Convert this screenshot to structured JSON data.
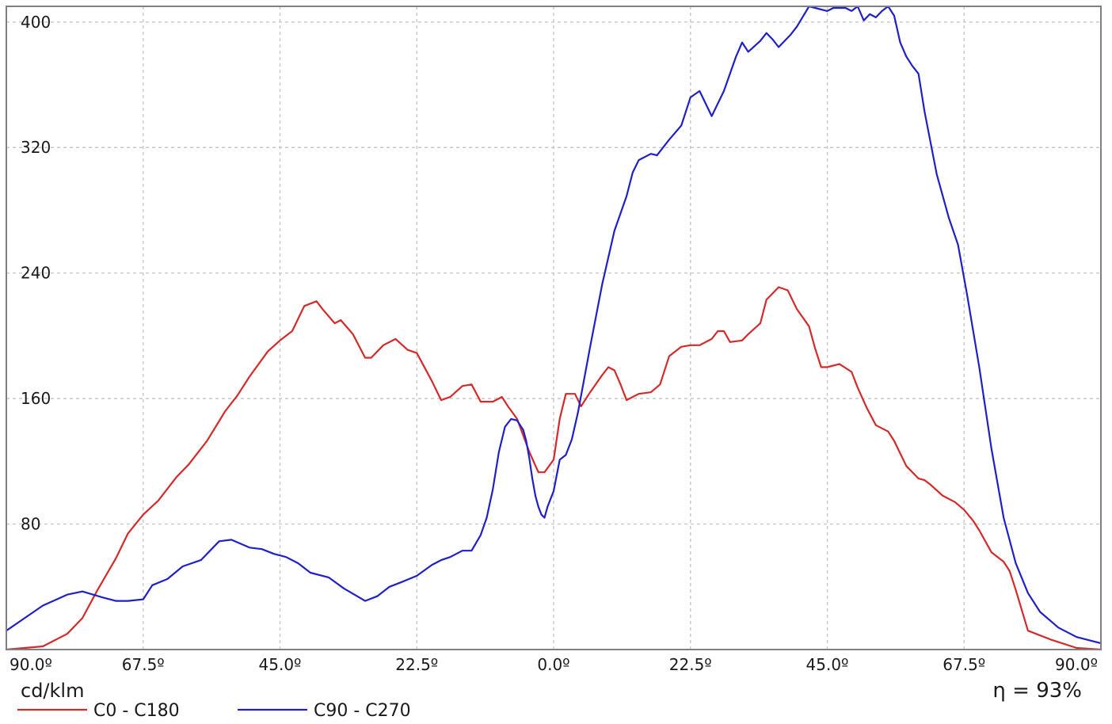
{
  "chart_data": {
    "type": "line",
    "xlabel": "",
    "ylabel": "cd/klm",
    "unit_label": "cd/klm",
    "efficiency_label": "η = 93%",
    "ylim": [
      0,
      410
    ],
    "xlim": [
      -90,
      90
    ],
    "y_ticks": [
      80,
      160,
      240,
      320,
      400
    ],
    "y_tick_labels": [
      "80",
      "160",
      "240",
      "320",
      "400"
    ],
    "x_ticks": [
      -90,
      -67.5,
      -45,
      -22.5,
      0,
      22.5,
      45,
      67.5,
      90
    ],
    "x_tick_labels": [
      "90.0º",
      "67.5º",
      "45.0º",
      "22.5º",
      "0.0º",
      "22.5º",
      "45.0º",
      "67.5º",
      "90.0º"
    ],
    "grid": true,
    "legend_position": "bottom-left",
    "colors": {
      "C0 - C180": "#d42a2a",
      "C90 - C270": "#2020c8",
      "grid": "#c8c8c8",
      "frame": "#808080"
    },
    "series": [
      {
        "name": "C0 - C180",
        "color": "#d42a2a",
        "x": [
          -90,
          -84,
          -80,
          -77.5,
          -75,
          -72,
          -70,
          -67.5,
          -65,
          -62,
          -60,
          -57,
          -54,
          -52,
          -50,
          -47,
          -45,
          -43,
          -41,
          -39,
          -38,
          -36,
          -35,
          -33,
          -31,
          -30,
          -28,
          -26,
          -24,
          -22.5,
          -20,
          -18.5,
          -17,
          -15,
          -13.5,
          -12,
          -10,
          -8.5,
          -7.5,
          -6,
          -4,
          -2.5,
          -1.5,
          0,
          1,
          2,
          3.5,
          4.5,
          6,
          8,
          9,
          10,
          11,
          12,
          14,
          16,
          17.5,
          19,
          21,
          22.5,
          24,
          26,
          27,
          28,
          29,
          31,
          32,
          34,
          35,
          37,
          38.5,
          40,
          42,
          43,
          44,
          45,
          47,
          49,
          50,
          51.5,
          53,
          55,
          56,
          57,
          58,
          60,
          61,
          62,
          64,
          66,
          67.5,
          69,
          70,
          72,
          74,
          75,
          76,
          78,
          82,
          86,
          90
        ],
        "values": [
          0,
          2,
          10,
          20,
          38,
          58,
          74,
          86,
          95,
          110,
          118,
          133,
          152,
          162,
          174,
          190,
          197,
          203,
          219,
          222,
          217,
          208,
          210,
          201,
          186,
          186,
          194,
          198,
          191,
          189,
          171,
          159,
          161,
          168,
          169,
          158,
          158,
          161,
          155,
          147,
          126,
          113,
          113,
          121,
          147,
          163,
          163,
          155,
          164,
          175,
          180,
          178,
          169,
          159,
          163,
          164,
          169,
          187,
          193,
          194,
          194,
          198,
          203,
          203,
          196,
          197,
          201,
          208,
          223,
          231,
          229,
          217,
          206,
          192,
          180,
          180,
          182,
          177,
          167,
          154,
          143,
          139,
          133,
          125,
          117,
          109,
          108,
          105,
          98,
          94,
          89,
          82,
          76,
          62,
          56,
          50,
          38,
          12,
          6,
          1,
          0
        ]
      },
      {
        "name": "C90 - C270",
        "color": "#2020c8",
        "x": [
          -90,
          -87,
          -84,
          -80,
          -77.5,
          -74,
          -72,
          -70,
          -67.5,
          -66,
          -63.5,
          -61,
          -58,
          -55,
          -53,
          -50,
          -48,
          -46,
          -44,
          -42,
          -40,
          -37,
          -34.5,
          -31,
          -29,
          -27,
          -25,
          -22.5,
          -20,
          -18.5,
          -17,
          -15,
          -13.5,
          -12,
          -11,
          -10,
          -9,
          -8,
          -7,
          -6,
          -5,
          -4.5,
          -4,
          -3.5,
          -3,
          -2.5,
          -2,
          -1.5,
          -1,
          0,
          1,
          2,
          3,
          4,
          6,
          8,
          10,
          12,
          13,
          14,
          16,
          17,
          19,
          21,
          22.5,
          24,
          26,
          28,
          30,
          31,
          32,
          34,
          35,
          36,
          37,
          39,
          40,
          42,
          43,
          45,
          46,
          48,
          49,
          50,
          51,
          52,
          53,
          54,
          55,
          56,
          57,
          58,
          59,
          60,
          61,
          63,
          65,
          66.5,
          68,
          70,
          72,
          74,
          76,
          78,
          80,
          83,
          86,
          90
        ],
        "values": [
          12,
          20,
          28,
          35,
          37,
          33,
          31,
          31,
          32,
          41,
          45,
          53,
          57,
          69,
          70,
          65,
          64,
          61,
          59,
          55,
          49,
          46,
          39,
          31,
          34,
          40,
          43,
          47,
          54,
          57,
          59,
          63,
          63,
          73,
          84,
          102,
          126,
          142,
          147,
          146,
          140,
          133,
          122,
          109,
          98,
          91,
          86,
          84,
          91,
          101,
          121,
          124,
          134,
          151,
          193,
          233,
          267,
          289,
          304,
          312,
          316,
          315,
          325,
          334,
          352,
          356,
          340,
          356,
          378,
          387,
          381,
          388,
          393,
          389,
          384,
          392,
          397,
          410,
          409,
          407,
          409,
          409,
          407,
          410,
          401,
          405,
          403,
          407,
          410,
          404,
          387,
          378,
          372,
          367,
          343,
          303,
          275,
          258,
          226,
          180,
          128,
          84,
          55,
          36,
          24,
          14,
          8,
          4
        ]
      }
    ]
  }
}
